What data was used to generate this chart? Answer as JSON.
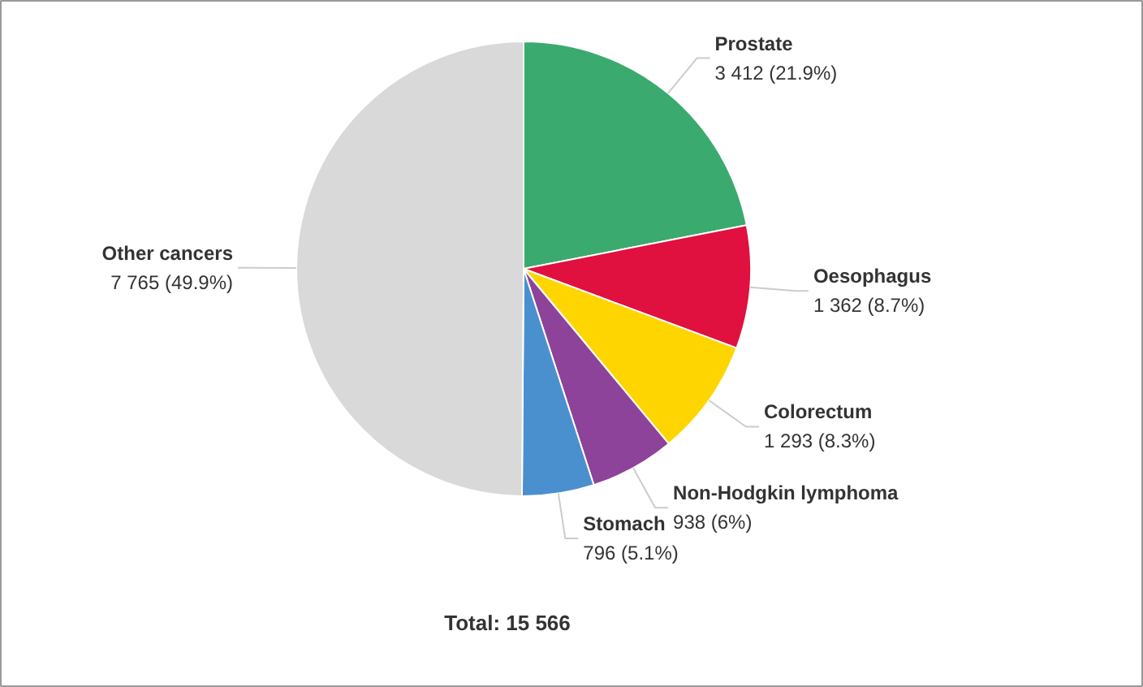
{
  "chart_data": {
    "type": "pie",
    "categories": [
      "Prostate",
      "Oesophagus",
      "Colorectum",
      "Non-Hodgkin lymphoma",
      "Stomach",
      "Other cancers"
    ],
    "values": [
      3412,
      1362,
      1293,
      938,
      796,
      7765
    ],
    "colors": [
      "#3aaa6e",
      "#e0103f",
      "#ffd500",
      "#8d4399",
      "#4a90cf",
      "#d9d9d9"
    ],
    "value_labels": [
      "3 412 (21.9%)",
      "1 362 (8.7%)",
      "1 293 (8.3%)",
      "938 (6%)",
      "796 (5.1%)",
      "7 765 (49.9%)"
    ],
    "annotations": [
      "Total: 15 566"
    ]
  }
}
